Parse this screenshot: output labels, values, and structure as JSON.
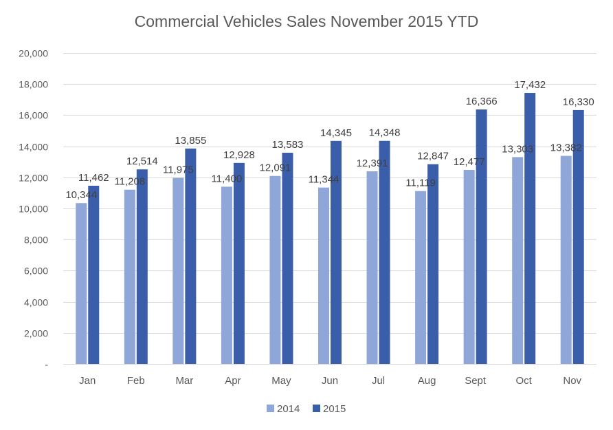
{
  "chart_data": {
    "type": "bar",
    "title": "Commercial Vehicles Sales November 2015 YTD",
    "categories": [
      "Jan",
      "Feb",
      "Mar",
      "Apr",
      "May",
      "Jun",
      "Jul",
      "Aug",
      "Sept",
      "Oct",
      "Nov"
    ],
    "series": [
      {
        "name": "2014",
        "color": "#8FA6D8",
        "values": [
          10344,
          11208,
          11975,
          11400,
          12091,
          11344,
          12391,
          11119,
          12477,
          13303,
          13382
        ],
        "labels": [
          "10,344",
          "11,208",
          "11,975",
          "11,400",
          "12,091",
          "11,344",
          "12,391",
          "11,119",
          "12,477",
          "13,303",
          "13,382"
        ]
      },
      {
        "name": "2015",
        "color": "#3A5EAA",
        "values": [
          11462,
          12514,
          13855,
          12928,
          13583,
          14345,
          14348,
          12847,
          16366,
          17432,
          16330
        ],
        "labels": [
          "11,462",
          "12,514",
          "13,855",
          "12,928",
          "13,583",
          "14,345",
          "14,348",
          "12,847",
          "16,366",
          "17,432",
          "16,330"
        ]
      }
    ],
    "ylim": [
      0,
      20000
    ],
    "yticks": [
      0,
      2000,
      4000,
      6000,
      8000,
      10000,
      12000,
      14000,
      16000,
      18000,
      20000
    ],
    "ytick_labels": [
      "-",
      "2,000",
      "4,000",
      "6,000",
      "8,000",
      "10,000",
      "12,000",
      "14,000",
      "16,000",
      "18,000",
      "20,000"
    ],
    "xlabel": "",
    "ylabel": "",
    "grid": true,
    "gridline_color": "#D9D9D9",
    "legend_position": "bottom"
  }
}
